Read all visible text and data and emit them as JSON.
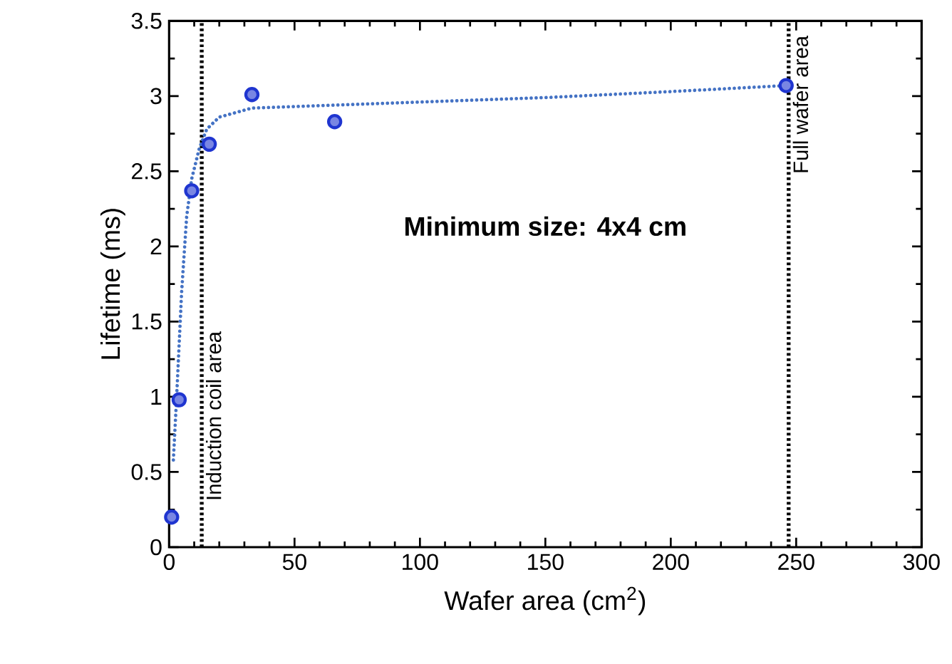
{
  "chart_data": {
    "type": "scatter",
    "xlabel": "Wafer area (cm$^{2}$)",
    "ylabel": "Lifetime (ms)",
    "annotations": [
      "**Minimum size: 4x4 cm**"
    ],
    "xlim": [
      0,
      300
    ],
    "ylim": [
      0,
      3.5
    ],
    "xticks": [
      0,
      50,
      100,
      150,
      200,
      250,
      300
    ],
    "yticks": [
      0,
      0.5,
      1,
      1.5,
      2,
      2.5,
      3,
      3.5
    ],
    "marker": "circle",
    "grid": false,
    "series": [
      {
        "color": "#1f35d0",
        "x": [
          1,
          4,
          9,
          16,
          33,
          66,
          246
        ],
        "values": [
          0.2,
          0.98,
          2.37,
          2.68,
          3.01,
          2.83,
          3.07
        ]
      },
      {
        "type": "line",
        "color": "#4472c4",
        "line_style": "dotted",
        "marker": "none",
        "x": [
          1.7,
          3,
          5,
          7,
          9,
          12,
          15,
          20,
          33,
          50,
          100,
          150,
          200,
          246
        ],
        "values": [
          0.58,
          1.0,
          1.7,
          2.2,
          2.45,
          2.65,
          2.78,
          2.86,
          2.92,
          2.93,
          2.96,
          2.99,
          3.03,
          3.07
        ]
      }
    ],
    "ref_lines": [
      {
        "axis": "x",
        "value": 13,
        "label": "Induction coil area",
        "color": "#000000",
        "line_style": "dotted"
      },
      {
        "axis": "x",
        "value": 247,
        "label": "Full wafer area",
        "color": "#000000",
        "line_style": "dotted"
      }
    ]
  }
}
